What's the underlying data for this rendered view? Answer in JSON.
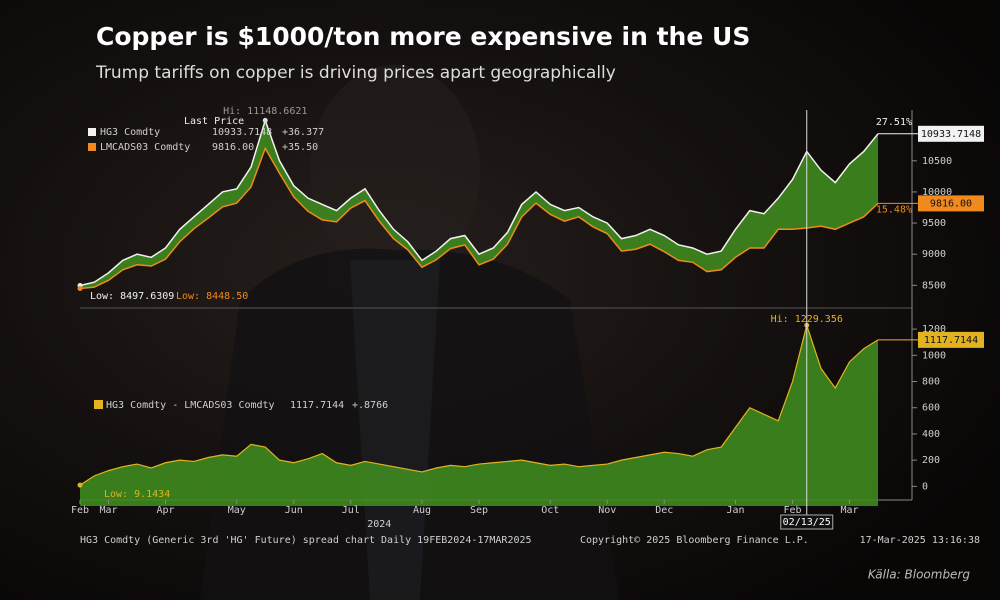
{
  "title": "Copper is $1000/ton more expensive in the US",
  "subtitle": "Trump tariffs on copper is driving prices apart geographically",
  "source": "Källa: Bloomberg",
  "footer": {
    "left": "HG3 Comdty (Generic 3rd 'HG' Future) spread chart  Daily 19FEB2024-17MAR2025",
    "center": "Copyright© 2025 Bloomberg Finance L.P.",
    "right": "17-Mar-2025 13:16:38"
  },
  "chart_data": [
    {
      "type": "line",
      "legend_header": "Last Price",
      "hi_label": "Hi: 11148.6621",
      "fill_color": "#3f8a1f",
      "ylim": [
        8200,
        11300
      ],
      "yticks": [
        8500,
        9000,
        9500,
        10000,
        10500
      ],
      "series": [
        {
          "name": "HG3 Comdty",
          "color": "#f2f2f2",
          "values": [
            8497.6309,
            8550,
            8700,
            8900,
            9000,
            8950,
            9100,
            9400,
            9600,
            9800,
            10000,
            10050,
            10400,
            11148.6621,
            10500,
            10100,
            9900,
            9800,
            9700,
            9900,
            10050,
            9700,
            9400,
            9200,
            8900,
            9050,
            9250,
            9300,
            9000,
            9100,
            9350,
            9800,
            10000,
            9800,
            9700,
            9750,
            9600,
            9500,
            9250,
            9300,
            9400,
            9300,
            9150,
            9100,
            9000,
            9050,
            9400,
            9700,
            9650,
            9900,
            10200,
            10650,
            10350,
            10150,
            10450,
            10650,
            10933.7148
          ],
          "last_label": "10933.7148",
          "change_label": "+36.377",
          "pct_label": "27.51%",
          "low_label": "Low: 8497.6309"
        },
        {
          "name": "LMCADS03 Comdty",
          "color": "#f08a1c",
          "values": [
            8448.5,
            8470,
            8580,
            8750,
            8830,
            8810,
            8920,
            9200,
            9410,
            9580,
            9760,
            9820,
            10080,
            10700,
            10300,
            9920,
            9690,
            9550,
            9520,
            9740,
            9860,
            9530,
            9250,
            9070,
            8790,
            8910,
            9090,
            9150,
            8830,
            8920,
            9160,
            9600,
            9820,
            9640,
            9530,
            9600,
            9440,
            9330,
            9050,
            9080,
            9160,
            9040,
            8900,
            8870,
            8720,
            8750,
            8950,
            9100,
            9100,
            9400,
            9400,
            9420,
            9450,
            9400,
            9500,
            9600,
            9816.0
          ],
          "last_label": "9816.00",
          "change_label": "+35.50",
          "pct_label": "15.48%",
          "low_label": "Low: 8448.50"
        }
      ]
    },
    {
      "type": "area",
      "categories": [
        "Feb",
        null,
        "Mar",
        null,
        null,
        null,
        "Apr",
        null,
        null,
        null,
        null,
        "May",
        null,
        null,
        null,
        "Jun",
        null,
        null,
        null,
        "Jul",
        null,
        null,
        null,
        null,
        "Aug",
        null,
        null,
        null,
        "Sep",
        null,
        null,
        null,
        null,
        "Oct",
        null,
        null,
        null,
        "Nov",
        null,
        null,
        null,
        "Dec",
        null,
        null,
        null,
        null,
        "Jan",
        null,
        null,
        null,
        "Feb",
        null,
        null,
        null,
        "Mar",
        null,
        null
      ],
      "year_label": "2024",
      "cursor_label": "02/13/25",
      "hi_label": "Hi: 1229.356",
      "low_label": "Low: 9.1434",
      "ylim": [
        -150,
        1300
      ],
      "yticks": [
        0,
        200,
        400,
        600,
        800,
        1000,
        1200
      ],
      "series": [
        {
          "name": "HG3 Comdty - LMCADS03 Comdty",
          "color": "#e3b21f",
          "fill": "#3f8a1f",
          "values": [
            9.1434,
            80,
            120,
            150,
            170,
            140,
            180,
            200,
            190,
            220,
            240,
            230,
            320,
            300,
            200,
            180,
            210,
            250,
            180,
            160,
            190,
            170,
            150,
            130,
            110,
            140,
            160,
            150,
            170,
            180,
            190,
            200,
            180,
            160,
            170,
            150,
            160,
            170,
            200,
            220,
            240,
            260,
            250,
            230,
            280,
            300,
            450,
            600,
            550,
            500,
            800,
            1229.356,
            900,
            750,
            950,
            1050,
            1117.7144
          ],
          "last_label": "1117.7144",
          "change_label": "+.8766"
        }
      ]
    }
  ]
}
